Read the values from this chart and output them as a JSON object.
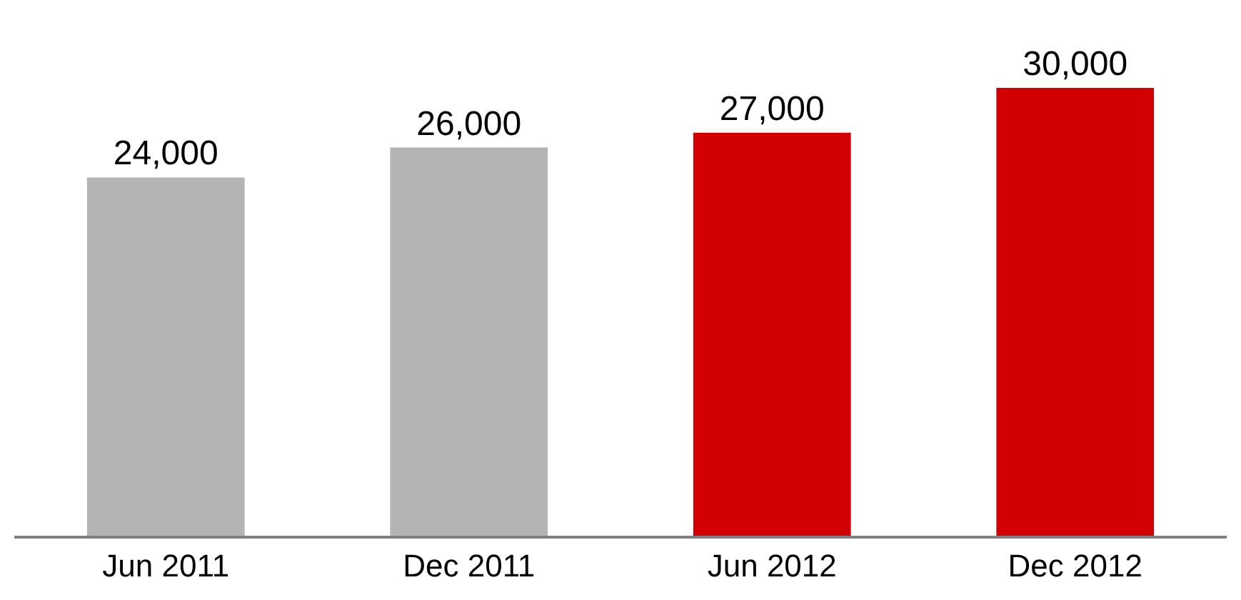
{
  "chart_data": {
    "type": "bar",
    "categories": [
      "Jun 2011",
      "Dec 2011",
      "Jun 2012",
      "Dec 2012"
    ],
    "values": [
      24000,
      26000,
      27000,
      30000
    ],
    "value_labels": [
      "24,000",
      "26,000",
      "27,000",
      "30,000"
    ],
    "colors": [
      "#b4b4b4",
      "#b4b4b4",
      "#d20000",
      "#d20000"
    ],
    "legend": false
  }
}
